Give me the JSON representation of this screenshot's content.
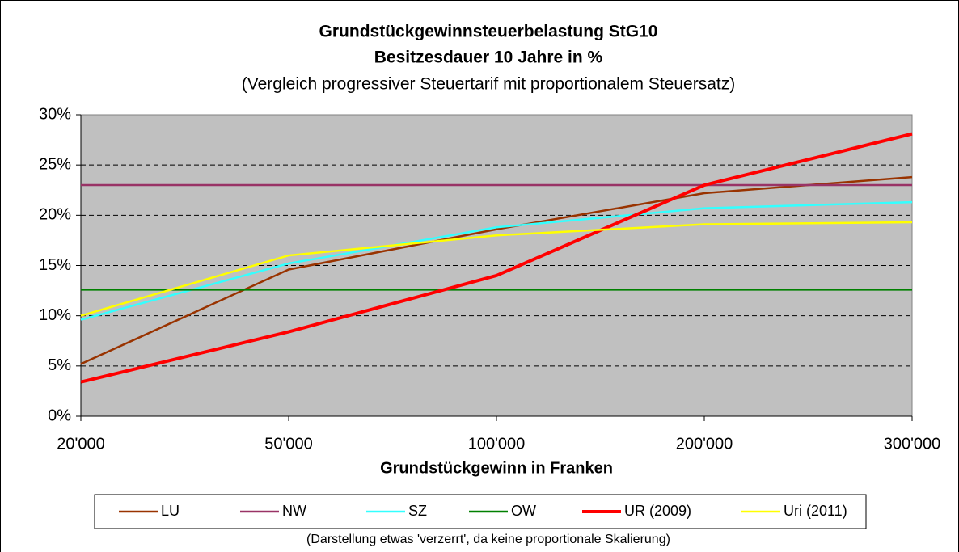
{
  "chart_data": {
    "type": "line",
    "title": [
      "Grundstückgewinnsteuerbelastung StG10",
      "Besitzesdauer 10 Jahre in %"
    ],
    "subtitle": "(Vergleich progressiver Steuertarif mit proportionalem Steuersatz)",
    "x_label": "Grundstückgewinn in Franken",
    "note": "(Darstellung etwas 'verzerrt', da keine proportionale Skalierung)",
    "categories": [
      "20'000",
      "50'000",
      "100'000",
      "200'000",
      "300'000"
    ],
    "series": [
      {
        "name": "LU",
        "color": "#993300",
        "values": [
          5.2,
          14.6,
          18.6,
          22.2,
          23.8
        ]
      },
      {
        "name": "NW",
        "color": "#993366",
        "values": [
          23,
          23,
          23,
          23,
          23
        ]
      },
      {
        "name": "SZ",
        "color": "#33ffff",
        "values": [
          9.6,
          15.2,
          18.8,
          20.7,
          21.3
        ]
      },
      {
        "name": "OW",
        "color": "#008000",
        "values": [
          12.6,
          12.6,
          12.6,
          12.6,
          12.6
        ]
      },
      {
        "name": "UR (2009)",
        "color": "#ff0000",
        "values": [
          3.4,
          8.4,
          14.0,
          23.0,
          28.1
        ]
      },
      {
        "name": "Uri (2011)",
        "color": "#ffff00",
        "values": [
          10.0,
          16.0,
          18.0,
          19.1,
          19.3
        ]
      }
    ],
    "ylim": [
      0,
      30
    ],
    "yticks": [
      {
        "value": 0,
        "label": "0%"
      },
      {
        "value": 5,
        "label": "5%"
      },
      {
        "value": 10,
        "label": "10%"
      },
      {
        "value": 15,
        "label": "15%"
      },
      {
        "value": 20,
        "label": "20%"
      },
      {
        "value": 25,
        "label": "25%"
      },
      {
        "value": 30,
        "label": "30%"
      }
    ],
    "grid": true,
    "legend": "bottom"
  }
}
